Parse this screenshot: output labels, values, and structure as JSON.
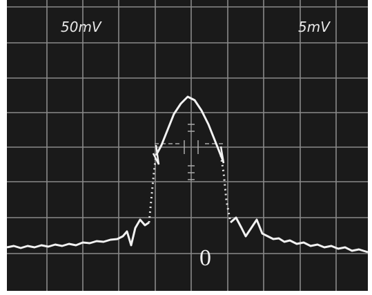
{
  "screen": {
    "left_label": "50mV",
    "right_label": "5mV",
    "center_label": "0"
  }
}
